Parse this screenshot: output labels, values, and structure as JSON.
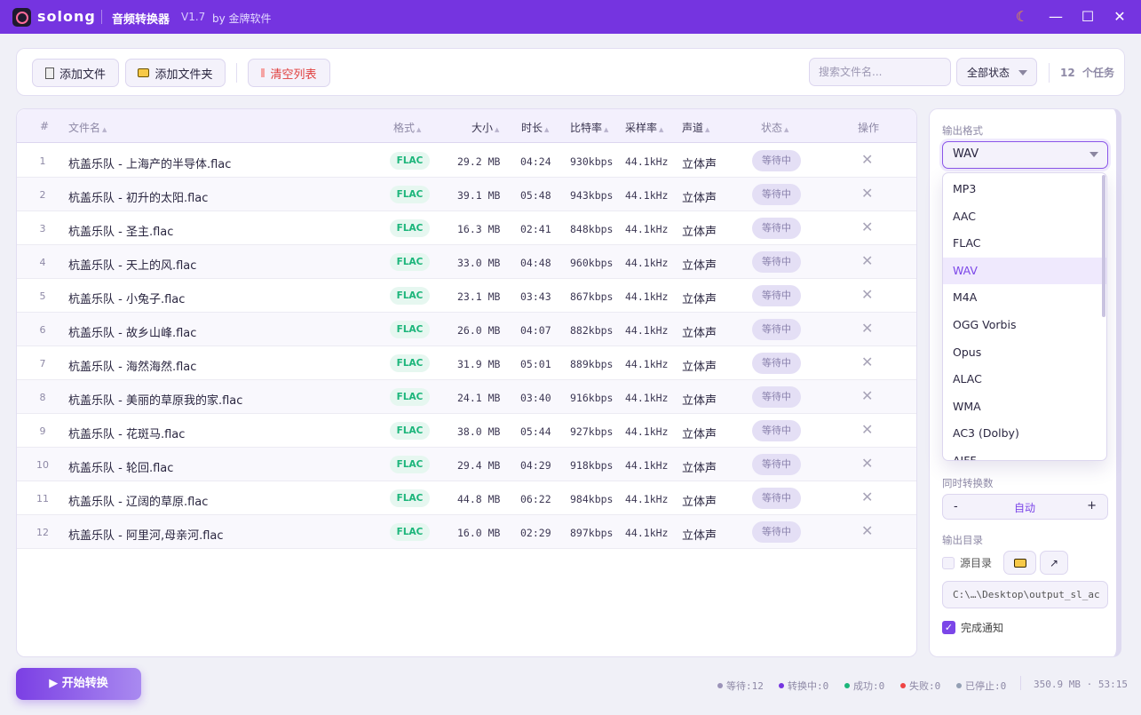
{
  "app": {
    "brand": "solong",
    "title": "音频转换器",
    "version": "V1.7",
    "by": "by 金牌软件"
  },
  "toolbar": {
    "add_file": "添加文件",
    "add_folder": "添加文件夹",
    "clear": "清空列表",
    "search_placeholder": "搜索文件名...",
    "status_filter": "全部状态",
    "task_count": "12  个任务"
  },
  "table": {
    "headers": {
      "idx": "#",
      "name": "文件名",
      "format": "格式",
      "size": "大小",
      "duration": "时长",
      "bitrate": "比特率",
      "samplerate": "采样率",
      "channel": "声道",
      "status": "状态",
      "action": "操作"
    },
    "rows": [
      {
        "i": "1",
        "name": "杭盖乐队 - 上海产的半导体.flac",
        "format": "FLAC",
        "size": "29.2 MB",
        "duration": "04:24",
        "bitrate": "930kbps",
        "sr": "44.1kHz",
        "ch": "立体声",
        "status": "等待中"
      },
      {
        "i": "2",
        "name": "杭盖乐队 - 初升的太阳.flac",
        "format": "FLAC",
        "size": "39.1 MB",
        "duration": "05:48",
        "bitrate": "943kbps",
        "sr": "44.1kHz",
        "ch": "立体声",
        "status": "等待中"
      },
      {
        "i": "3",
        "name": "杭盖乐队 - 圣主.flac",
        "format": "FLAC",
        "size": "16.3 MB",
        "duration": "02:41",
        "bitrate": "848kbps",
        "sr": "44.1kHz",
        "ch": "立体声",
        "status": "等待中"
      },
      {
        "i": "4",
        "name": "杭盖乐队 - 天上的风.flac",
        "format": "FLAC",
        "size": "33.0 MB",
        "duration": "04:48",
        "bitrate": "960kbps",
        "sr": "44.1kHz",
        "ch": "立体声",
        "status": "等待中"
      },
      {
        "i": "5",
        "name": "杭盖乐队 - 小兔子.flac",
        "format": "FLAC",
        "size": "23.1 MB",
        "duration": "03:43",
        "bitrate": "867kbps",
        "sr": "44.1kHz",
        "ch": "立体声",
        "status": "等待中"
      },
      {
        "i": "6",
        "name": "杭盖乐队 - 故乡山峰.flac",
        "format": "FLAC",
        "size": "26.0 MB",
        "duration": "04:07",
        "bitrate": "882kbps",
        "sr": "44.1kHz",
        "ch": "立体声",
        "status": "等待中"
      },
      {
        "i": "7",
        "name": "杭盖乐队 - 海然海然.flac",
        "format": "FLAC",
        "size": "31.9 MB",
        "duration": "05:01",
        "bitrate": "889kbps",
        "sr": "44.1kHz",
        "ch": "立体声",
        "status": "等待中"
      },
      {
        "i": "8",
        "name": "杭盖乐队 - 美丽的草原我的家.flac",
        "format": "FLAC",
        "size": "24.1 MB",
        "duration": "03:40",
        "bitrate": "916kbps",
        "sr": "44.1kHz",
        "ch": "立体声",
        "status": "等待中"
      },
      {
        "i": "9",
        "name": "杭盖乐队 - 花斑马.flac",
        "format": "FLAC",
        "size": "38.0 MB",
        "duration": "05:44",
        "bitrate": "927kbps",
        "sr": "44.1kHz",
        "ch": "立体声",
        "status": "等待中"
      },
      {
        "i": "10",
        "name": "杭盖乐队 - 轮回.flac",
        "format": "FLAC",
        "size": "29.4 MB",
        "duration": "04:29",
        "bitrate": "918kbps",
        "sr": "44.1kHz",
        "ch": "立体声",
        "status": "等待中"
      },
      {
        "i": "11",
        "name": "杭盖乐队 - 辽阔的草原.flac",
        "format": "FLAC",
        "size": "44.8 MB",
        "duration": "06:22",
        "bitrate": "984kbps",
        "sr": "44.1kHz",
        "ch": "立体声",
        "status": "等待中"
      },
      {
        "i": "12",
        "name": "杭盖乐队 - 阿里河,母亲河.flac",
        "format": "FLAC",
        "size": "16.0 MB",
        "duration": "02:29",
        "bitrate": "897kbps",
        "sr": "44.1kHz",
        "ch": "立体声",
        "status": "等待中"
      }
    ]
  },
  "panel": {
    "output_format_label": "输出格式",
    "output_format": "WAV",
    "format_options": [
      "MP3",
      "AAC",
      "FLAC",
      "WAV",
      "M4A",
      "OGG Vorbis",
      "Opus",
      "ALAC",
      "WMA",
      "AC3 (Dolby)",
      "AIFF"
    ],
    "concurrency_label": "同时转换数",
    "concurrency_minus": "-",
    "concurrency_value": "自动",
    "concurrency_plus": "+",
    "outdir_label": "输出目录",
    "source_dir": "源目录",
    "outdir_path": "C:\\…\\Desktop\\output_sl_ac",
    "notify": "完成通知"
  },
  "footer": {
    "start": "▶ 开始转换",
    "waiting": "等待:12",
    "converting": "转换中:0",
    "success": "成功:0",
    "failed": "失败:0",
    "stopped": "已停止:0",
    "summary": "350.9 MB · 53:15"
  },
  "colors": {
    "accent": "#7534e0",
    "success": "#1bb57a",
    "fail": "#ef4444"
  }
}
